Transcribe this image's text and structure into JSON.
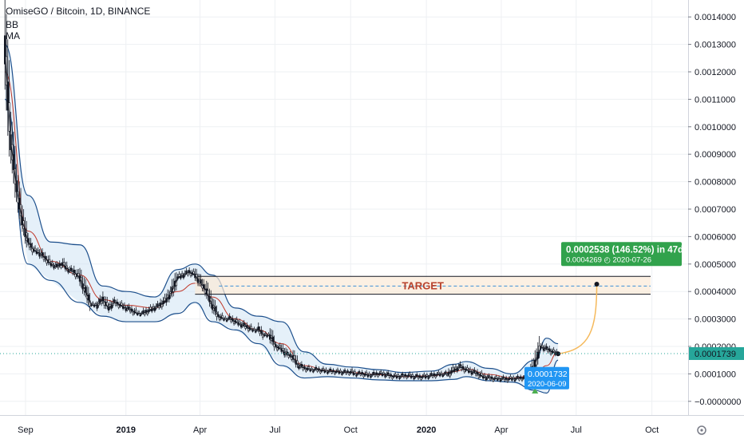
{
  "header": {
    "title": "OmiseGO / Bitcoin, 1D, BINANCE",
    "indicators": [
      "BB",
      "MA"
    ]
  },
  "colors": {
    "background": "#ffffff",
    "grid": "#eef0f3",
    "candle": "#131722",
    "bb_band": "#1c4f8c",
    "bb_fill": "#cfe3f4",
    "ma": "#c0392b",
    "target_fill": "#fbe9d7",
    "target_text": "#b8432d",
    "projection": "#f5b95b",
    "info_box": "#31a24c",
    "price_badge": "#26a69a",
    "marker_badge": "#2196f3",
    "dashed_line": "#3b8fd6"
  },
  "target_label": "TARGET",
  "projection_box": {
    "line1": "0.0002538 (146.52%) in 47d",
    "line2_price": "0.0004269",
    "line2_date": "2020-07-26"
  },
  "marker_box": {
    "price": "0.0001732",
    "date": "2020-06-09"
  },
  "last_price_badge": "0.0001739",
  "chart_data": {
    "type": "line",
    "title": "OmiseGO / Bitcoin, 1D, BINANCE",
    "x_ticks": [
      "Sep",
      "2019",
      "Apr",
      "Jul",
      "Oct",
      "2020",
      "Apr",
      "Jul",
      "Oct"
    ],
    "y_ticks": [
      "0.0014000",
      "0.0013000",
      "0.0012000",
      "0.0011000",
      "0.0010000",
      "0.0009000",
      "0.0008000",
      "0.0007000",
      "0.0006000",
      "0.0005000",
      "0.0004000",
      "0.0003000",
      "0.0002000",
      "0.0001000",
      "−0.0000000"
    ],
    "ylim": [
      -5e-05,
      0.00145
    ],
    "grid": true,
    "series": [
      {
        "name": "OmiseGO / Bitcoin",
        "x": [
          "2018-08-07",
          "2018-08-14",
          "2018-08-21",
          "2018-08-28",
          "2018-09-04",
          "2018-09-11",
          "2018-09-18",
          "2018-09-25",
          "2018-10-02",
          "2018-10-09",
          "2018-10-16",
          "2018-10-23",
          "2018-10-30",
          "2018-11-06",
          "2018-11-13",
          "2018-11-20",
          "2018-11-27",
          "2018-12-04",
          "2018-12-11",
          "2018-12-18",
          "2018-12-25",
          "2019-01-01",
          "2019-01-08",
          "2019-01-15",
          "2019-01-22",
          "2019-01-29",
          "2019-02-05",
          "2019-02-12",
          "2019-02-19",
          "2019-02-26",
          "2019-03-05",
          "2019-03-12",
          "2019-03-19",
          "2019-03-26",
          "2019-04-02",
          "2019-04-09",
          "2019-04-16",
          "2019-04-23",
          "2019-04-30",
          "2019-05-07",
          "2019-05-14",
          "2019-05-21",
          "2019-05-28",
          "2019-06-04",
          "2019-06-11",
          "2019-06-18",
          "2019-06-25",
          "2019-07-02",
          "2019-07-09",
          "2019-07-16",
          "2019-07-23",
          "2019-07-30",
          "2019-08-06",
          "2019-08-13",
          "2019-08-20",
          "2019-08-27",
          "2019-09-03",
          "2019-09-10",
          "2019-09-17",
          "2019-09-24",
          "2019-10-01",
          "2019-10-08",
          "2019-10-15",
          "2019-10-22",
          "2019-10-29",
          "2019-11-05",
          "2019-11-12",
          "2019-11-19",
          "2019-11-26",
          "2019-12-03",
          "2019-12-10",
          "2019-12-17",
          "2019-12-24",
          "2019-12-31",
          "2020-01-07",
          "2020-01-14",
          "2020-01-21",
          "2020-01-28",
          "2020-02-04",
          "2020-02-11",
          "2020-02-18",
          "2020-02-25",
          "2020-03-03",
          "2020-03-10",
          "2020-03-17",
          "2020-03-24",
          "2020-03-31",
          "2020-04-07",
          "2020-04-14",
          "2020-04-21",
          "2020-04-28",
          "2020-05-05",
          "2020-05-12",
          "2020-05-19",
          "2020-05-26",
          "2020-06-02",
          "2020-06-09"
        ],
        "close": [
          0.00128,
          0.00095,
          0.00078,
          0.00066,
          0.00058,
          0.00055,
          0.00054,
          0.00052,
          0.0005,
          0.00049,
          0.0005,
          0.00048,
          0.00047,
          0.00045,
          0.0004,
          0.00035,
          0.00035,
          0.00037,
          0.00034,
          0.00036,
          0.00035,
          0.00034,
          0.00033,
          0.00032,
          0.00032,
          0.00033,
          0.00034,
          0.00035,
          0.00037,
          0.0004,
          0.00045,
          0.00046,
          0.00047,
          0.00046,
          0.00043,
          0.0004,
          0.00035,
          0.00031,
          0.0003,
          0.0003,
          0.00029,
          0.00028,
          0.00027,
          0.00026,
          0.00026,
          0.00024,
          0.00024,
          0.0002,
          0.00019,
          0.00017,
          0.00016,
          0.00013,
          0.00012,
          0.000115,
          0.000115,
          0.000112,
          0.00011,
          0.000108,
          0.000107,
          0.000105,
          0.000106,
          0.0001,
          0.0001,
          9.5e-05,
          9.7e-05,
          0.0001,
          9.8e-05,
          9.2e-05,
          9e-05,
          9.2e-05,
          9.3e-05,
          9e-05,
          8.8e-05,
          9e-05,
          9.3e-05,
          9.7e-05,
          9.9e-05,
          9.9e-05,
          0.000115,
          0.000125,
          0.000115,
          0.000108,
          0.0001,
          9e-05,
          8.5e-05,
          8.2e-05,
          8.2e-05,
          8e-05,
          8.2e-05,
          8.3e-05,
          8.5e-05,
          8.7e-05,
          0.000135,
          0.0002,
          0.00019,
          0.00018,
          0.0001732
        ]
      },
      {
        "name": "BB upper",
        "x": [
          "2018-08-07",
          "2018-09-04",
          "2018-10-02",
          "2018-11-06",
          "2018-12-04",
          "2019-01-01",
          "2019-02-05",
          "2019-03-05",
          "2019-03-26",
          "2019-04-16",
          "2019-05-14",
          "2019-06-11",
          "2019-07-09",
          "2019-08-06",
          "2019-09-03",
          "2019-10-01",
          "2019-11-05",
          "2019-12-03",
          "2020-01-07",
          "2020-02-04",
          "2020-02-18",
          "2020-03-17",
          "2020-04-14",
          "2020-05-12",
          "2020-05-26",
          "2020-06-09"
        ],
        "values": [
          0.0013,
          0.00075,
          0.00058,
          0.00057,
          0.00042,
          0.0004,
          0.00038,
          0.00048,
          0.0005,
          0.00046,
          0.00034,
          0.00031,
          0.00029,
          0.00018,
          0.000135,
          0.000125,
          0.000115,
          0.000105,
          0.00011,
          0.000135,
          0.000145,
          0.00012,
          0.0001,
          0.00015,
          0.00023,
          0.00021
        ]
      },
      {
        "name": "BB lower",
        "x": [
          "2018-08-07",
          "2018-09-04",
          "2018-10-02",
          "2018-11-06",
          "2018-12-04",
          "2019-01-01",
          "2019-02-05",
          "2019-03-05",
          "2019-03-26",
          "2019-04-16",
          "2019-05-14",
          "2019-06-11",
          "2019-07-09",
          "2019-08-06",
          "2019-09-03",
          "2019-10-01",
          "2019-11-05",
          "2019-12-03",
          "2020-01-07",
          "2020-02-04",
          "2020-02-18",
          "2020-03-17",
          "2020-04-14",
          "2020-05-12",
          "2020-05-26",
          "2020-06-09"
        ],
        "values": [
          0.0011,
          0.0005,
          0.00044,
          0.00036,
          0.00031,
          0.00029,
          0.00029,
          0.00032,
          0.00036,
          0.00029,
          0.00026,
          0.00021,
          0.00013,
          8.5e-05,
          9e-05,
          8.5e-05,
          7.8e-05,
          7.5e-05,
          7.5e-05,
          8e-05,
          9e-05,
          7.5e-05,
          7e-05,
          4e-05,
          3e-05,
          0.00015
        ]
      },
      {
        "name": "MA",
        "x": [
          "2018-08-07",
          "2018-09-04",
          "2018-10-02",
          "2018-11-06",
          "2018-12-04",
          "2019-01-01",
          "2019-02-05",
          "2019-03-05",
          "2019-03-26",
          "2019-04-16",
          "2019-05-14",
          "2019-06-11",
          "2019-07-09",
          "2019-08-06",
          "2019-09-03",
          "2019-10-01",
          "2019-11-05",
          "2019-12-03",
          "2020-01-07",
          "2020-02-04",
          "2020-02-18",
          "2020-03-17",
          "2020-04-14",
          "2020-05-12",
          "2020-05-26",
          "2020-06-09"
        ],
        "values": [
          0.0012,
          0.00062,
          0.00051,
          0.00046,
          0.00037,
          0.00035,
          0.00034,
          0.0004,
          0.00043,
          0.00038,
          0.0003,
          0.00026,
          0.00021,
          0.00013,
          0.000112,
          0.000105,
          9.7e-05,
          9e-05,
          9.3e-05,
          0.000108,
          0.000118,
          9.8e-05,
          8.5e-05,
          9.5e-05,
          0.00013,
          0.00018
        ]
      }
    ],
    "target_zone": [
      0.00039,
      0.000455
    ],
    "target_dashed": 0.00042,
    "projection": {
      "from": [
        "2020-06-09",
        0.0001732
      ],
      "to": [
        "2020-07-26",
        0.0004269
      ]
    }
  }
}
